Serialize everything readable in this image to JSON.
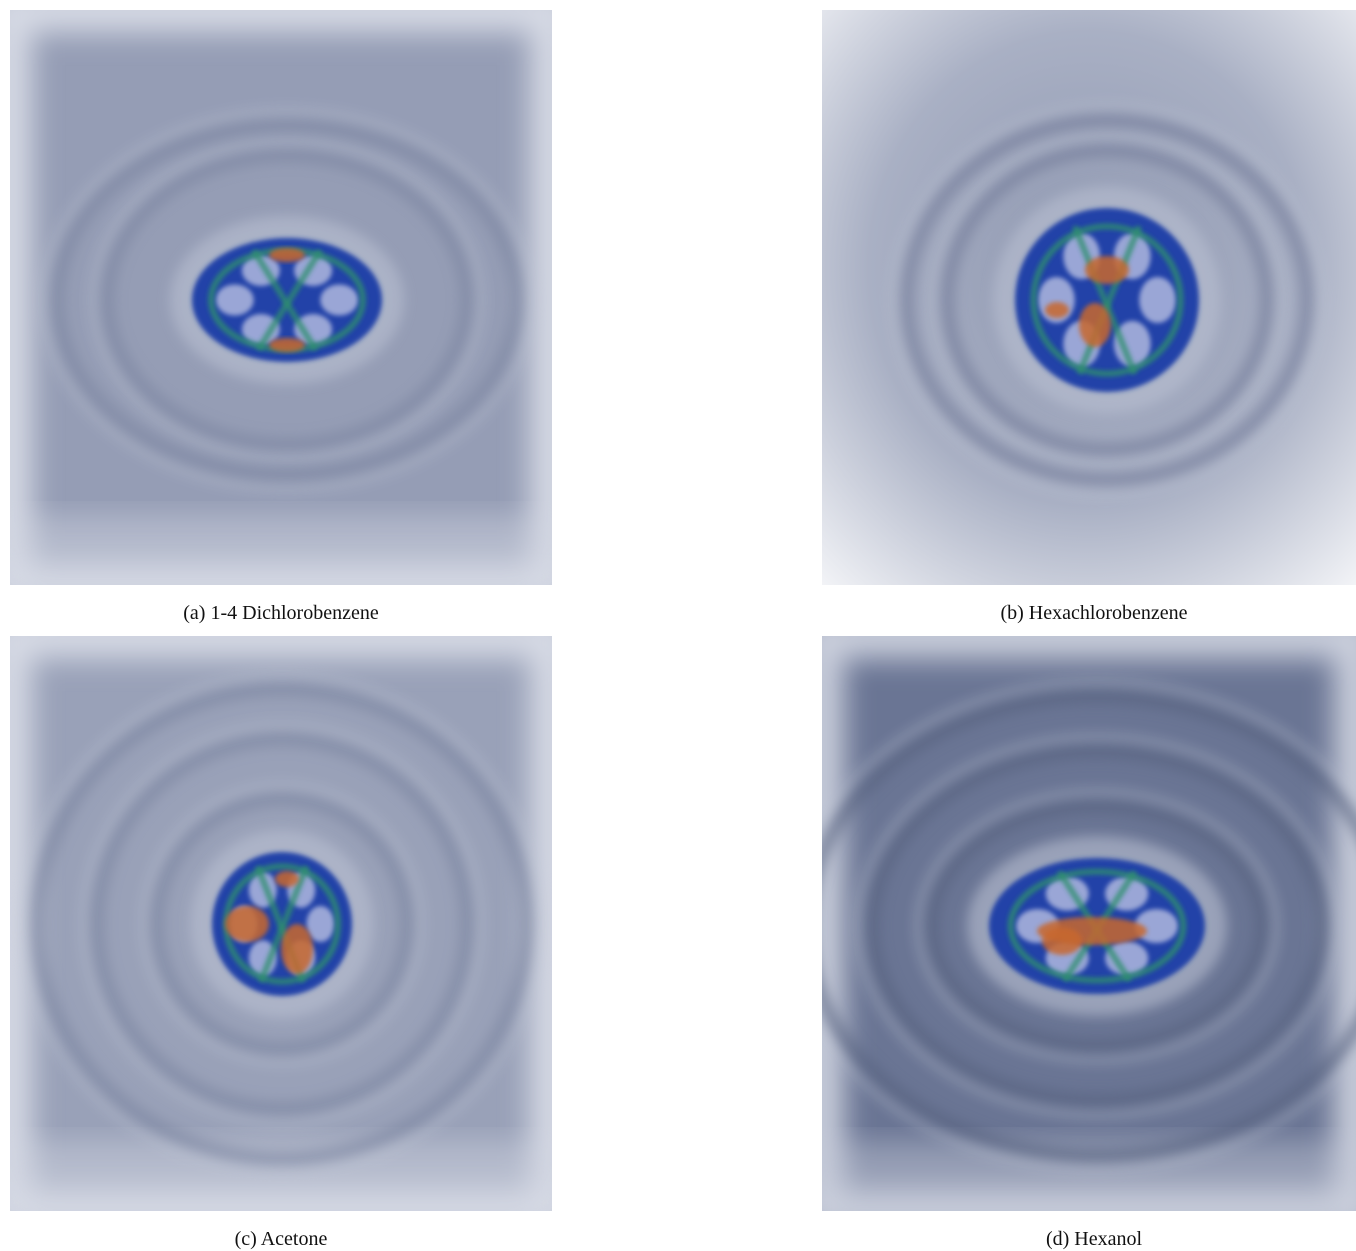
{
  "figures": [
    {
      "caption": "(a) 1-4 Dichlorobenzene"
    },
    {
      "caption": "(b) Hexachlorobenzene"
    },
    {
      "caption": "(c) Acetone"
    },
    {
      "caption": "(d) Hexanol"
    }
  ]
}
